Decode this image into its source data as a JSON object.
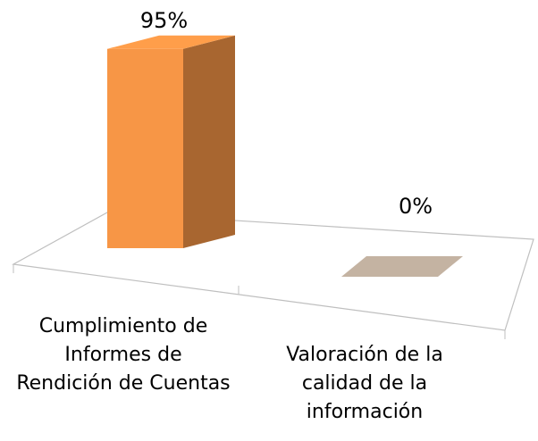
{
  "chart_data": {
    "type": "bar3d",
    "categories": [
      "Cumplimiento de Informes de Rendición de Cuentas",
      "Valoración de la calidad de la información"
    ],
    "values": [
      95,
      0
    ],
    "value_labels": [
      "95%",
      "0%"
    ],
    "colors": [
      "#f79646",
      "#c4b3a2"
    ]
  }
}
